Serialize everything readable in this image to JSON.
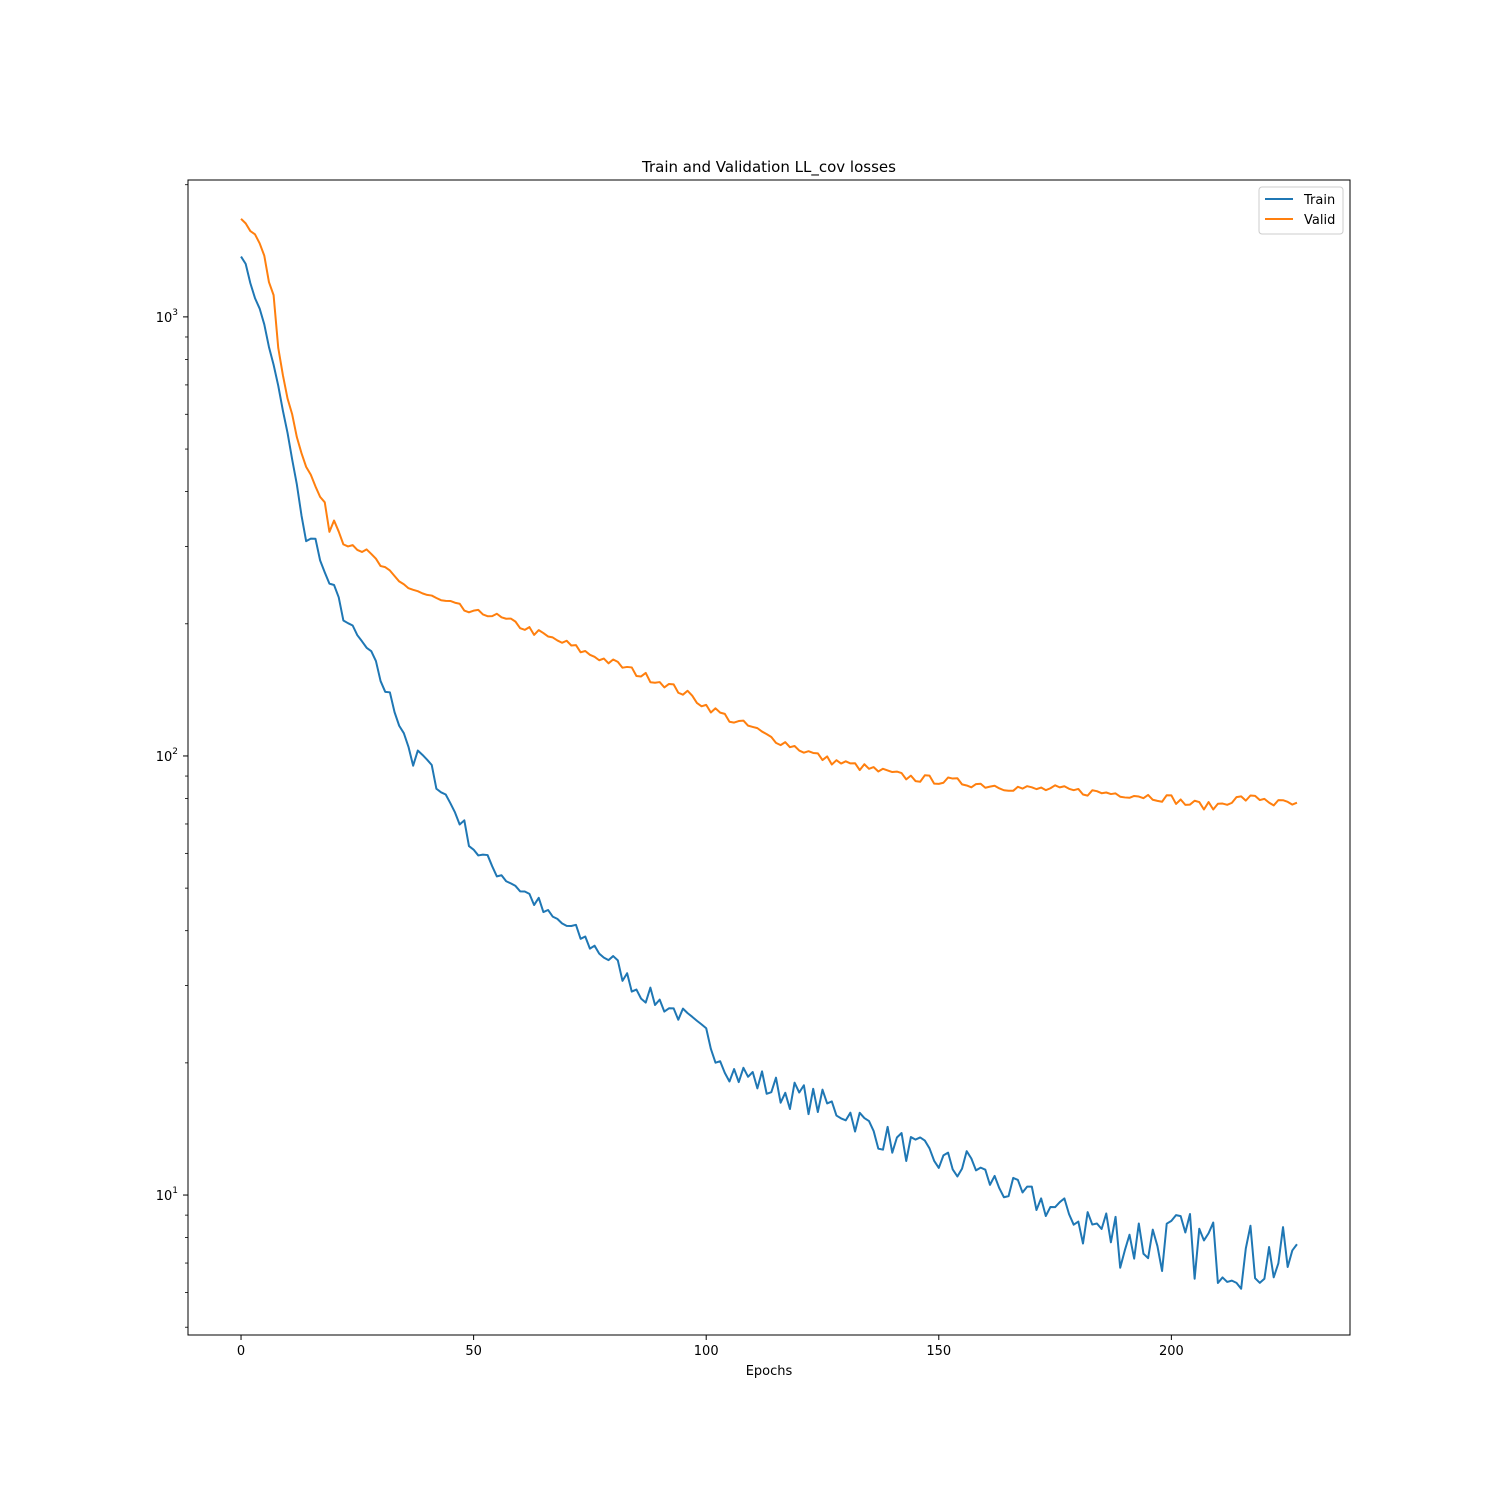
{
  "chart_data": {
    "type": "line",
    "title": "Train and Validation  LL_cov losses",
    "xlabel": "Epochs",
    "ylabel": "",
    "yscale": "log",
    "xlim": [
      -11.4,
      238.4
    ],
    "ylim": [
      4.8,
      2050
    ],
    "xticks": [
      0,
      50,
      100,
      150,
      200
    ],
    "xtick_labels": [
      "0",
      "50",
      "100",
      "150",
      "200"
    ],
    "yticks": [
      10,
      100,
      1000
    ],
    "ytick_labels": [
      {
        "base": "10",
        "exp": "1"
      },
      {
        "base": "10",
        "exp": "2"
      },
      {
        "base": "10",
        "exp": "3"
      }
    ],
    "grid": false,
    "legend": {
      "position": "upper-right",
      "entries": [
        "Train",
        "Valid"
      ]
    },
    "colors": {
      "Train": "#1f77b4",
      "Valid": "#ff7f0e"
    },
    "anchors": {
      "Train": [
        [
          0,
          1400
        ],
        [
          5,
          960
        ],
        [
          8,
          690
        ],
        [
          10,
          540
        ],
        [
          12,
          410
        ],
        [
          14,
          310
        ],
        [
          16,
          310
        ],
        [
          18,
          260
        ],
        [
          20,
          235
        ],
        [
          24,
          190
        ],
        [
          27,
          175
        ],
        [
          30,
          150
        ],
        [
          32,
          135
        ],
        [
          35,
          115
        ],
        [
          37,
          97
        ],
        [
          39,
          100
        ],
        [
          42,
          88
        ],
        [
          45,
          78
        ],
        [
          47,
          72
        ],
        [
          50,
          62
        ],
        [
          53,
          57
        ],
        [
          56,
          54
        ],
        [
          60,
          50
        ],
        [
          63,
          47
        ],
        [
          66,
          43
        ],
        [
          70,
          41
        ],
        [
          74,
          38
        ],
        [
          77,
          36
        ],
        [
          80,
          34
        ],
        [
          83,
          31
        ],
        [
          86,
          29
        ],
        [
          90,
          27.5
        ],
        [
          94,
          26
        ],
        [
          98,
          24
        ],
        [
          100,
          23
        ],
        [
          103,
          21
        ],
        [
          106,
          19
        ],
        [
          110,
          18.5
        ],
        [
          114,
          17.5
        ],
        [
          118,
          17
        ],
        [
          122,
          16.5
        ],
        [
          126,
          16
        ],
        [
          130,
          15.5
        ],
        [
          134,
          14.5
        ],
        [
          138,
          13.5
        ],
        [
          142,
          13
        ],
        [
          146,
          12.5
        ],
        [
          150,
          12
        ],
        [
          154,
          11.5
        ],
        [
          157,
          12
        ],
        [
          160,
          11
        ],
        [
          163,
          10.5
        ],
        [
          167,
          10
        ],
        [
          171,
          9.7
        ],
        [
          175,
          9.3
        ],
        [
          179,
          9
        ],
        [
          183,
          8.5
        ],
        [
          187,
          8.2
        ],
        [
          191,
          8
        ],
        [
          195,
          7.9
        ],
        [
          199,
          7.8
        ],
        [
          203,
          7.7
        ],
        [
          207,
          7.6
        ],
        [
          211,
          7.4
        ],
        [
          215,
          7.3
        ],
        [
          219,
          7.2
        ],
        [
          223,
          7.1
        ],
        [
          227,
          7.0
        ]
      ],
      "Valid": [
        [
          0,
          1680
        ],
        [
          3,
          1560
        ],
        [
          5,
          1350
        ],
        [
          7,
          1100
        ],
        [
          8,
          850
        ],
        [
          10,
          660
        ],
        [
          12,
          540
        ],
        [
          14,
          460
        ],
        [
          16,
          410
        ],
        [
          18,
          370
        ],
        [
          19,
          330
        ],
        [
          20,
          345
        ],
        [
          22,
          310
        ],
        [
          25,
          300
        ],
        [
          28,
          285
        ],
        [
          31,
          265
        ],
        [
          34,
          248
        ],
        [
          37,
          240
        ],
        [
          40,
          232
        ],
        [
          43,
          225
        ],
        [
          46,
          220
        ],
        [
          50,
          210
        ],
        [
          53,
          212
        ],
        [
          56,
          205
        ],
        [
          60,
          198
        ],
        [
          63,
          192
        ],
        [
          66,
          186
        ],
        [
          70,
          180
        ],
        [
          74,
          172
        ],
        [
          78,
          166
        ],
        [
          82,
          160
        ],
        [
          86,
          153
        ],
        [
          90,
          148
        ],
        [
          93,
          143
        ],
        [
          96,
          138
        ],
        [
          100,
          130
        ],
        [
          103,
          125
        ],
        [
          106,
          120
        ],
        [
          110,
          116
        ],
        [
          113,
          111
        ],
        [
          116,
          108
        ],
        [
          120,
          104
        ],
        [
          123,
          101
        ],
        [
          126,
          98
        ],
        [
          130,
          96
        ],
        [
          134,
          94
        ],
        [
          138,
          92
        ],
        [
          142,
          90
        ],
        [
          145,
          89
        ],
        [
          150,
          88
        ],
        [
          155,
          87
        ],
        [
          160,
          86
        ],
        [
          165,
          85
        ],
        [
          170,
          84
        ],
        [
          175,
          84
        ],
        [
          180,
          83
        ],
        [
          185,
          82.5
        ],
        [
          190,
          82
        ],
        [
          195,
          81
        ],
        [
          200,
          80
        ],
        [
          203,
          78
        ],
        [
          206,
          77.5
        ],
        [
          209,
          76.5
        ],
        [
          212,
          79
        ],
        [
          215,
          80
        ],
        [
          218,
          80
        ],
        [
          220,
          80
        ],
        [
          222,
          78
        ],
        [
          225,
          78
        ],
        [
          227,
          77
        ]
      ]
    },
    "n_points": 228,
    "noise_seed": 7
  }
}
